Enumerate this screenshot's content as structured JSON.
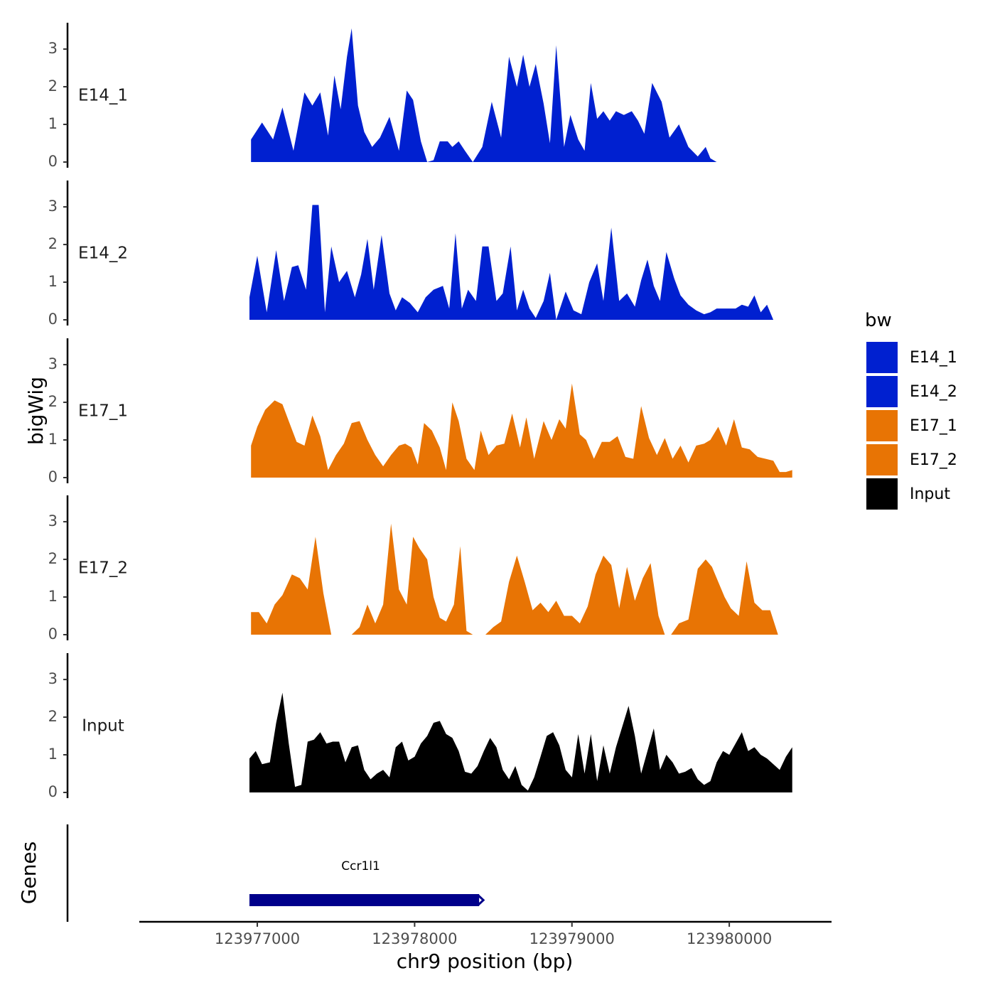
{
  "chart_data": {
    "type": "area",
    "title": "",
    "ylabel": "bigWig",
    "genes_label": "Genes",
    "xlabel": "chr9 position (bp)",
    "xlim": [
      123976250,
      123980650
    ],
    "ylim": [
      0,
      3.7
    ],
    "x_ticks": [
      123977000,
      123978000,
      123979000,
      123980000
    ],
    "x_tick_labels": [
      "123977000",
      "123978000",
      "123979000",
      "123980000"
    ],
    "y_ticks": [
      0,
      1,
      2,
      3
    ],
    "y_tick_labels": [
      "0",
      "1",
      "2",
      "3"
    ],
    "legend": {
      "title": "bw",
      "entries": [
        {
          "label": "E14_1",
          "color": "#0020d0"
        },
        {
          "label": "E14_2",
          "color": "#0020d0"
        },
        {
          "label": "E17_1",
          "color": "#e87404"
        },
        {
          "label": "E17_2",
          "color": "#e87404"
        },
        {
          "label": "Input",
          "color": "#000000"
        }
      ]
    },
    "series": [
      {
        "name": "E14_1",
        "color": "#0020d0",
        "x": [
          123976960,
          123977030,
          123977100,
          123977160,
          123977230,
          123977300,
          123977350,
          123977400,
          123977450,
          123977490,
          123977530,
          123977570,
          123977600,
          123977640,
          123977680,
          123977730,
          123977780,
          123977840,
          123977900,
          123977950,
          123977990,
          123978040,
          123978080,
          123978120,
          123978160,
          123978210,
          123978240,
          123978280,
          123978320,
          123978370,
          123978430,
          123978490,
          123978550,
          123978600,
          123978650,
          123978690,
          123978730,
          123978770,
          123978820,
          123978860,
          123978900,
          123978950,
          123978990,
          123979040,
          123979080,
          123979120,
          123979160,
          123979200,
          123979240,
          123979280,
          123979330,
          123979380,
          123979420,
          123979460,
          123979510,
          123979570,
          123979620,
          123979680,
          123979740,
          123979800,
          123979850,
          123979880,
          123979920,
          123979960,
          123980000,
          123980040,
          123980080,
          123980120,
          123980160,
          123980200,
          123980240,
          123980280,
          123980320,
          123980360,
          123980400
        ],
        "values": [
          0.6,
          1.05,
          0.6,
          1.45,
          0.3,
          1.85,
          1.5,
          1.85,
          0.7,
          2.3,
          1.4,
          2.8,
          3.55,
          1.5,
          0.8,
          0.4,
          0.65,
          1.2,
          0.3,
          1.9,
          1.65,
          0.55,
          0.0,
          0.05,
          0.55,
          0.55,
          0.4,
          0.55,
          0.3,
          0.0,
          0.4,
          1.6,
          0.65,
          2.8,
          2.0,
          2.85,
          2.0,
          2.6,
          1.55,
          0.5,
          3.1,
          0.4,
          1.25,
          0.6,
          0.3,
          2.1,
          1.15,
          1.35,
          1.1,
          1.35,
          1.25,
          1.35,
          1.1,
          0.75,
          2.1,
          1.6,
          0.65,
          1.0,
          0.4,
          0.15,
          0.4,
          0.1,
          0.0,
          0.0,
          0.0,
          0.0,
          0.0,
          0.0,
          0.0,
          0.0,
          0.0,
          0.0,
          0.0,
          0.0,
          0.0
        ]
      },
      {
        "name": "E14_2",
        "color": "#0020d0",
        "x": [
          123976950,
          123977000,
          123977060,
          123977120,
          123977170,
          123977220,
          123977260,
          123977310,
          123977350,
          123977390,
          123977430,
          123977470,
          123977520,
          123977570,
          123977620,
          123977660,
          123977700,
          123977740,
          123977790,
          123977840,
          123977880,
          123977920,
          123977970,
          123978020,
          123978070,
          123978120,
          123978180,
          123978220,
          123978260,
          123978300,
          123978340,
          123978390,
          123978430,
          123978470,
          123978520,
          123978560,
          123978610,
          123978650,
          123978690,
          123978730,
          123978770,
          123978820,
          123978860,
          123978900,
          123978960,
          123979010,
          123979060,
          123979110,
          123979160,
          123979200,
          123979250,
          123979300,
          123979350,
          123979400,
          123979440,
          123979480,
          123979520,
          123979560,
          123979600,
          123979650,
          123979690,
          123979740,
          123979790,
          123979840,
          123979880,
          123979920,
          123979960,
          123980000,
          123980040,
          123980080,
          123980120,
          123980160,
          123980200,
          123980240,
          123980280,
          123980320,
          123980360,
          123980400
        ],
        "values": [
          0.6,
          1.7,
          0.2,
          1.85,
          0.5,
          1.4,
          1.45,
          0.8,
          3.05,
          3.05,
          0.2,
          1.95,
          1.0,
          1.3,
          0.6,
          1.2,
          2.15,
          0.8,
          2.25,
          0.7,
          0.25,
          0.6,
          0.45,
          0.2,
          0.6,
          0.8,
          0.9,
          0.3,
          2.3,
          0.3,
          0.8,
          0.5,
          1.95,
          1.95,
          0.5,
          0.7,
          1.95,
          0.25,
          0.8,
          0.3,
          0.05,
          0.5,
          1.25,
          0.0,
          0.75,
          0.25,
          0.15,
          1.0,
          1.5,
          0.5,
          2.45,
          0.5,
          0.7,
          0.35,
          1.05,
          1.6,
          0.9,
          0.5,
          1.8,
          1.1,
          0.65,
          0.4,
          0.25,
          0.15,
          0.2,
          0.3,
          0.3,
          0.3,
          0.3,
          0.4,
          0.35,
          0.65,
          0.2,
          0.4,
          0.0,
          0.0,
          0.0,
          0.0
        ]
      },
      {
        "name": "E17_1",
        "color": "#e87404",
        "x": [
          123976960,
          123977000,
          123977050,
          123977110,
          123977160,
          123977200,
          123977250,
          123977300,
          123977350,
          123977400,
          123977450,
          123977500,
          123977550,
          123977600,
          123977650,
          123977700,
          123977750,
          123977800,
          123977850,
          123977900,
          123977940,
          123977980,
          123978020,
          123978060,
          123978110,
          123978160,
          123978200,
          123978240,
          123978280,
          123978330,
          123978380,
          123978420,
          123978470,
          123978520,
          123978570,
          123978620,
          123978670,
          123978710,
          123978760,
          123978820,
          123978870,
          123978920,
          123978960,
          123979000,
          123979050,
          123979090,
          123979140,
          123979190,
          123979240,
          123979290,
          123979340,
          123979390,
          123979440,
          123979490,
          123979540,
          123979590,
          123979640,
          123979690,
          123979740,
          123979790,
          123979840,
          123979880,
          123979930,
          123979980,
          123980030,
          123980080,
          123980130,
          123980180,
          123980230,
          123980280,
          123980320,
          123980360,
          123980400
        ],
        "values": [
          0.85,
          1.35,
          1.8,
          2.05,
          1.95,
          1.5,
          0.95,
          0.85,
          1.65,
          1.1,
          0.2,
          0.6,
          0.9,
          1.45,
          1.5,
          1.0,
          0.6,
          0.3,
          0.6,
          0.85,
          0.9,
          0.8,
          0.35,
          1.45,
          1.25,
          0.8,
          0.2,
          2.0,
          1.5,
          0.5,
          0.2,
          1.25,
          0.6,
          0.85,
          0.9,
          1.7,
          0.8,
          1.6,
          0.5,
          1.5,
          1.0,
          1.55,
          1.3,
          2.5,
          1.15,
          1.0,
          0.5,
          0.95,
          0.95,
          1.1,
          0.55,
          0.5,
          1.9,
          1.05,
          0.6,
          1.05,
          0.5,
          0.85,
          0.4,
          0.85,
          0.9,
          1.0,
          1.35,
          0.85,
          1.55,
          0.8,
          0.75,
          0.55,
          0.5,
          0.45,
          0.15,
          0.15,
          0.2
        ]
      },
      {
        "name": "E17_2",
        "color": "#e87404",
        "x": [
          123976960,
          123977010,
          123977060,
          123977110,
          123977160,
          123977220,
          123977270,
          123977320,
          123977370,
          123977420,
          123977470,
          123977520,
          123977560,
          123977600,
          123977650,
          123977700,
          123977750,
          123977800,
          123977850,
          123977900,
          123977950,
          123977990,
          123978030,
          123978080,
          123978120,
          123978160,
          123978200,
          123978250,
          123978290,
          123978330,
          123978370,
          123978410,
          123978450,
          123978500,
          123978550,
          123978600,
          123978650,
          123978700,
          123978750,
          123978800,
          123978850,
          123978900,
          123978950,
          123979000,
          123979050,
          123979100,
          123979150,
          123979200,
          123979250,
          123979300,
          123979350,
          123979400,
          123979450,
          123979500,
          123979550,
          123979590,
          123979630,
          123979680,
          123979740,
          123979800,
          123979850,
          123979890,
          123979930,
          123979970,
          123980010,
          123980060,
          123980110,
          123980160,
          123980210,
          123980260,
          123980310,
          123980360,
          123980400
        ],
        "values": [
          0.6,
          0.6,
          0.3,
          0.8,
          1.05,
          1.6,
          1.5,
          1.2,
          2.6,
          1.1,
          0.0,
          0.0,
          0.0,
          0.0,
          0.2,
          0.8,
          0.3,
          0.8,
          2.95,
          1.2,
          0.8,
          2.6,
          2.3,
          2.0,
          1.0,
          0.45,
          0.35,
          0.8,
          2.35,
          0.1,
          0.0,
          0.0,
          0.0,
          0.2,
          0.35,
          1.4,
          2.1,
          1.4,
          0.65,
          0.85,
          0.6,
          0.9,
          0.5,
          0.5,
          0.3,
          0.75,
          1.6,
          2.1,
          1.85,
          0.7,
          1.8,
          0.9,
          1.5,
          1.9,
          0.5,
          0.0,
          0.0,
          0.3,
          0.4,
          1.75,
          2.0,
          1.8,
          1.4,
          1.0,
          0.7,
          0.5,
          1.95,
          0.85,
          0.65,
          0.65,
          0.0,
          0.0,
          0.0
        ]
      },
      {
        "name": "Input",
        "color": "#000000",
        "x": [
          123976950,
          123976990,
          123977030,
          123977080,
          123977120,
          123977160,
          123977200,
          123977240,
          123977280,
          123977320,
          123977360,
          123977400,
          123977440,
          123977480,
          123977520,
          123977560,
          123977600,
          123977640,
          123977680,
          123977720,
          123977760,
          123977800,
          123977840,
          123977880,
          123977920,
          123977960,
          123978000,
          123978040,
          123978080,
          123978120,
          123978160,
          123978200,
          123978240,
          123978280,
          123978320,
          123978360,
          123978400,
          123978440,
          123978480,
          123978520,
          123978560,
          123978600,
          123978640,
          123978680,
          123978720,
          123978760,
          123978800,
          123978840,
          123978880,
          123978920,
          123978960,
          123979000,
          123979040,
          123979080,
          123979120,
          123979160,
          123979200,
          123979240,
          123979280,
          123979320,
          123979360,
          123979400,
          123979440,
          123979480,
          123979520,
          123979560,
          123979600,
          123979640,
          123979680,
          123979720,
          123979760,
          123979800,
          123979840,
          123979880,
          123979920,
          123979960,
          123980000,
          123980040,
          123980080,
          123980120,
          123980160,
          123980200,
          123980240,
          123980280,
          123980320,
          123980360,
          123980400
        ],
        "values": [
          0.9,
          1.1,
          0.75,
          0.8,
          1.85,
          2.65,
          1.3,
          0.15,
          0.2,
          1.35,
          1.4,
          1.6,
          1.3,
          1.35,
          1.35,
          0.8,
          1.2,
          1.25,
          0.6,
          0.35,
          0.5,
          0.6,
          0.4,
          1.2,
          1.35,
          0.85,
          0.95,
          1.3,
          1.5,
          1.85,
          1.9,
          1.55,
          1.45,
          1.1,
          0.55,
          0.5,
          0.7,
          1.1,
          1.45,
          1.2,
          0.6,
          0.35,
          0.7,
          0.2,
          0.05,
          0.4,
          0.95,
          1.5,
          1.6,
          1.25,
          0.6,
          0.4,
          1.55,
          0.5,
          1.55,
          0.3,
          1.25,
          0.5,
          1.2,
          1.75,
          2.3,
          1.5,
          0.5,
          1.1,
          1.7,
          0.6,
          1.0,
          0.8,
          0.5,
          0.55,
          0.65,
          0.35,
          0.2,
          0.3,
          0.8,
          1.1,
          1.0,
          1.3,
          1.6,
          1.1,
          1.2,
          1.0,
          0.9,
          0.75,
          0.6,
          0.95,
          1.2
        ]
      }
    ],
    "genes": [
      {
        "name": "Ccr1l1",
        "start": 123976950,
        "end": 123978410,
        "color": "#00008b"
      }
    ]
  }
}
